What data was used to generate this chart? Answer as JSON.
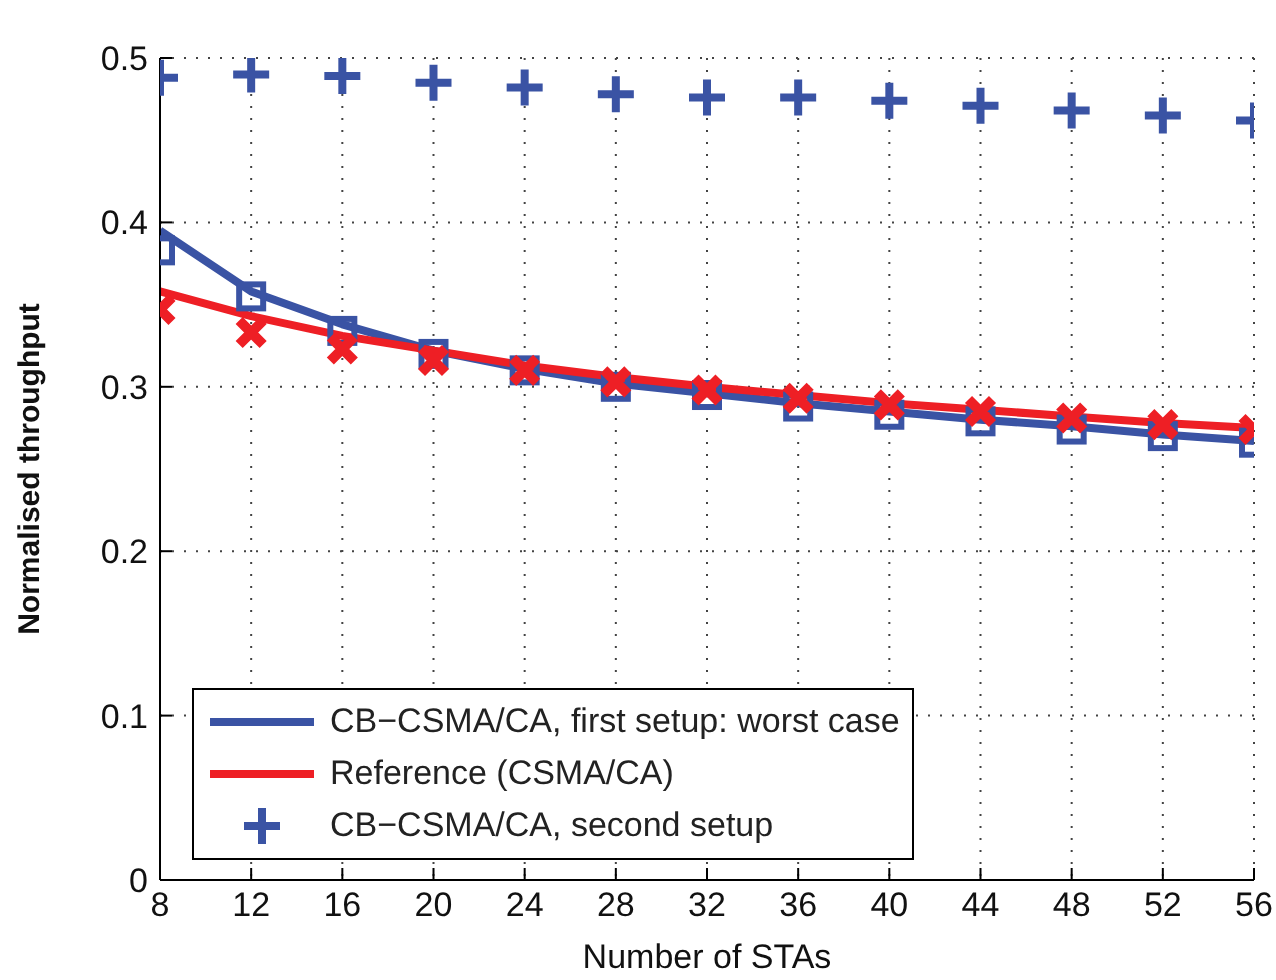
{
  "chart_data": {
    "type": "line",
    "xlabel": "Number of STAs",
    "ylabel": "Normalised throughput",
    "x": [
      8,
      12,
      16,
      20,
      24,
      28,
      32,
      36,
      40,
      44,
      48,
      52,
      56
    ],
    "xlim": [
      8,
      56
    ],
    "xticks": [
      8,
      12,
      16,
      20,
      24,
      28,
      32,
      36,
      40,
      44,
      48,
      52,
      56
    ],
    "ylim": [
      0,
      0.5
    ],
    "yticks": [
      0,
      0.1,
      0.2,
      0.3,
      0.4,
      0.5
    ],
    "grid": true,
    "legend": "bottom left",
    "line_style": "solid",
    "series": [
      {
        "name": "CB−CSMA/CA, first setup: worst case",
        "type": "line",
        "marker": "none",
        "color": "#3a53a4",
        "values": [
          0.395,
          0.358,
          0.338,
          0.322,
          0.311,
          0.302,
          0.296,
          0.29,
          0.285,
          0.28,
          0.276,
          0.271,
          0.267
        ]
      },
      {
        "name": "Reference (CSMA/CA)",
        "type": "line",
        "marker": "none",
        "color": "#ee1f25",
        "values": [
          0.358,
          0.343,
          0.331,
          0.322,
          0.313,
          0.306,
          0.3,
          0.295,
          0.29,
          0.286,
          0.282,
          0.278,
          0.275
        ]
      },
      {
        "type": "scatter",
        "marker": "square",
        "color": "#3a53a4",
        "values": [
          0.383,
          0.355,
          0.334,
          0.32,
          0.31,
          0.3,
          0.295,
          0.288,
          0.283,
          0.279,
          0.274,
          0.27,
          0.266
        ]
      },
      {
        "type": "scatter",
        "marker": "x",
        "color": "#ee1f25",
        "values": [
          0.347,
          0.333,
          0.323,
          0.316,
          0.31,
          0.303,
          0.298,
          0.293,
          0.289,
          0.285,
          0.281,
          0.277,
          0.274
        ]
      },
      {
        "name": "CB−CSMA/CA, second setup",
        "type": "scatter",
        "marker": "cross",
        "color": "#3a53a4",
        "values": [
          0.488,
          0.49,
          0.489,
          0.485,
          0.482,
          0.478,
          0.476,
          0.476,
          0.474,
          0.471,
          0.468,
          0.465,
          0.462
        ]
      }
    ]
  }
}
